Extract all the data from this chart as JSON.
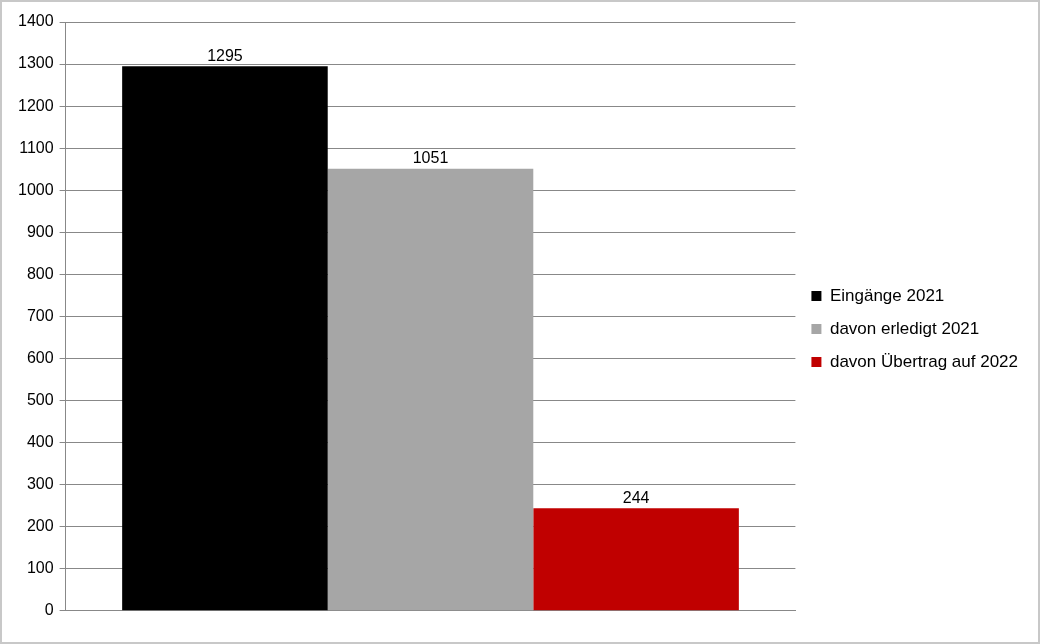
{
  "chart_data": {
    "type": "bar",
    "categories": [
      null
    ],
    "series": [
      {
        "name": "Eingänge 2021",
        "color": "#000000",
        "values": [
          1295
        ]
      },
      {
        "name": "davon erledigt 2021",
        "color": "#a6a6a6",
        "values": [
          1051
        ]
      },
      {
        "name": "davon Übertrag auf 2022",
        "color": "#c00000",
        "values": [
          244
        ]
      }
    ],
    "ylim": [
      0,
      1400
    ],
    "yticks": [
      0,
      100,
      200,
      300,
      400,
      500,
      600,
      700,
      800,
      900,
      1000,
      1100,
      1200,
      1300,
      1400
    ],
    "grid": "y",
    "legend": "right",
    "data_labels": true
  }
}
